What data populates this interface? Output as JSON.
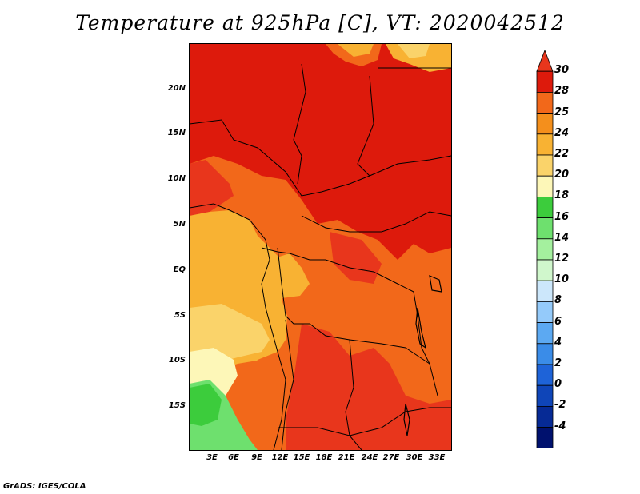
{
  "title": "Temperature at 925hPa [C], VT: 2020042512",
  "credit": "GrADS: IGES/COLA",
  "lat_ticks": [
    "20N",
    "15N",
    "10N",
    "5N",
    "EQ",
    "5S",
    "10S",
    "15S"
  ],
  "lon_ticks": [
    "3E",
    "6E",
    "9E",
    "12E",
    "15E",
    "18E",
    "21E",
    "24E",
    "27E",
    "30E",
    "33E"
  ],
  "colorbar": {
    "labels": [
      "30",
      "28",
      "25",
      "24",
      "22",
      "20",
      "18",
      "16",
      "14",
      "12",
      "10",
      "8",
      "6",
      "4",
      "2",
      "0",
      "-2",
      "-4"
    ],
    "colors": [
      "#e8361c",
      "#dd1a0c",
      "#f2681a",
      "#f48f1c",
      "#f8b233",
      "#fad36a",
      "#fdf7b8",
      "#3ccc3c",
      "#6ee06e",
      "#a4f09e",
      "#d0f7cc",
      "#cce7fb",
      "#94cafa",
      "#5ca9f2",
      "#3a8ce8",
      "#1e63d8",
      "#0f45b8",
      "#062a95",
      "#00116e",
      "#d8d8f4"
    ]
  },
  "colors": {
    "hot": "#dd1a0c",
    "warm": "#f2681a",
    "mild": "#f8b233",
    "cool": "#fad36a",
    "green": "#3ccc3c"
  }
}
